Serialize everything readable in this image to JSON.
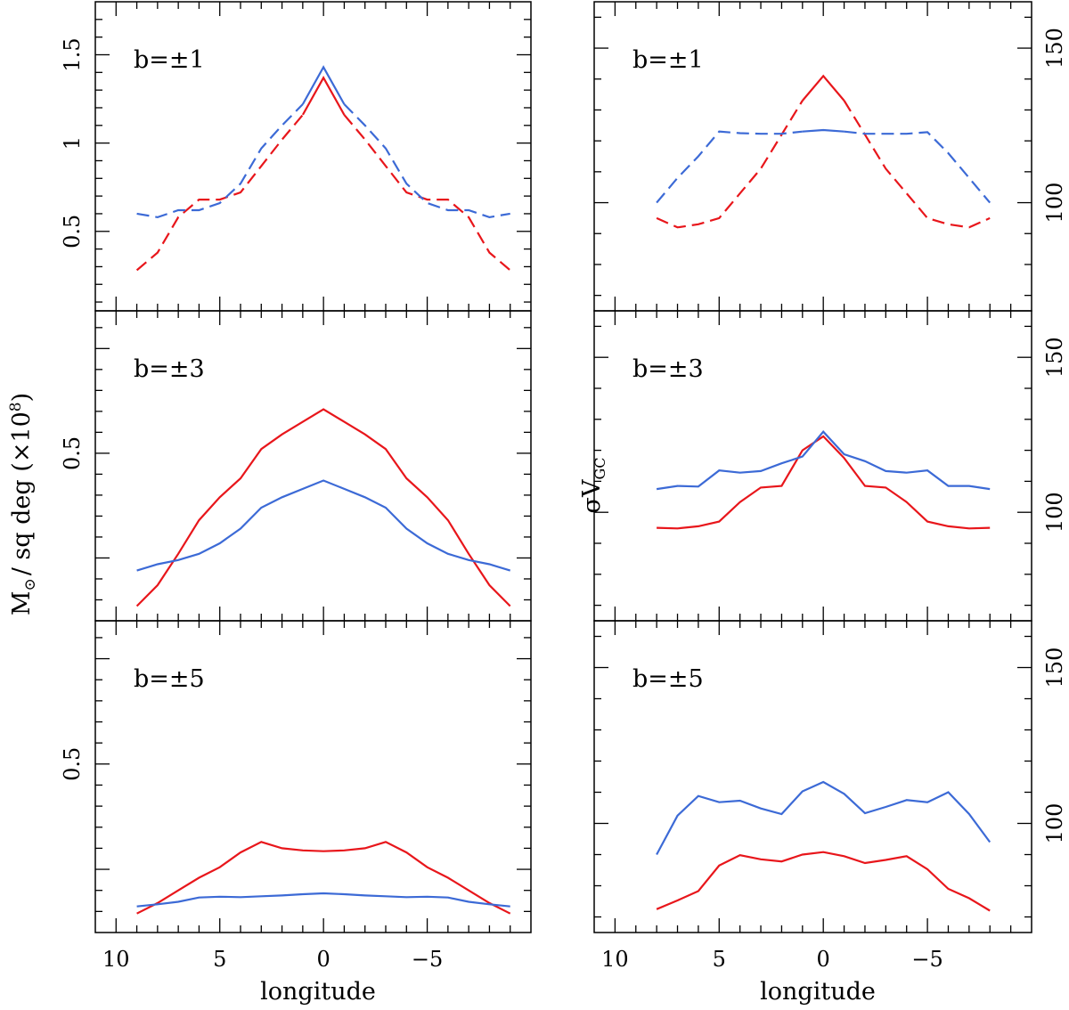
{
  "colors": {
    "red": "#e8161b",
    "blue": "#3c6ad6",
    "axes": "#000000"
  },
  "chart_data": {
    "type": "line",
    "shared_x": {
      "xlabel": "longitude",
      "xlim": [
        11,
        -10
      ],
      "major_ticks": [
        10,
        5,
        0,
        -5
      ],
      "tick_labels": [
        "10",
        "5",
        "0",
        "−5"
      ]
    },
    "left_column": {
      "ylabel_parts": [
        "M",
        "⊙",
        "/ sq deg (×10",
        "8",
        ")"
      ],
      "panels": [
        {
          "label": "b=±1",
          "ylim": [
            0.05,
            1.8
          ],
          "yticks": [
            0.5,
            1,
            1.5
          ],
          "ytick_labels": [
            "0.5",
            "1",
            "1.5"
          ],
          "series": [
            {
              "name": "red",
              "color": "red",
              "style": "mixed",
              "x": [
                9,
                8,
                7,
                6,
                5,
                4,
                3,
                2,
                1,
                0,
                -1,
                -2,
                -3,
                -4,
                -5,
                -6,
                -7,
                -8,
                -9
              ],
              "y": [
                0.28,
                0.38,
                0.58,
                0.68,
                0.68,
                0.72,
                0.87,
                1.02,
                1.16,
                1.37,
                1.16,
                1.02,
                0.87,
                0.72,
                0.68,
                0.68,
                0.58,
                0.38,
                0.28
              ]
            },
            {
              "name": "blue",
              "color": "blue",
              "style": "mixed",
              "x": [
                9,
                8,
                7,
                6,
                5,
                4,
                3,
                2,
                1,
                0,
                -1,
                -2,
                -3,
                -4,
                -5,
                -6,
                -7,
                -8,
                -9
              ],
              "y": [
                0.6,
                0.58,
                0.62,
                0.62,
                0.66,
                0.77,
                0.97,
                1.1,
                1.22,
                1.43,
                1.22,
                1.1,
                0.97,
                0.77,
                0.66,
                0.62,
                0.62,
                0.58,
                0.6
              ]
            }
          ]
        },
        {
          "label": "b=±3",
          "ylim": [
            0.1,
            0.84
          ],
          "yticks": [
            0.5
          ],
          "ytick_labels": [
            "0.5"
          ],
          "series": [
            {
              "name": "red",
              "color": "red",
              "style": "solid",
              "x": [
                9,
                8,
                7,
                6,
                5,
                4,
                3,
                2,
                1,
                0,
                -1,
                -2,
                -3,
                -4,
                -5,
                -6,
                -7,
                -8,
                -9
              ],
              "y": [
                0.135,
                0.185,
                0.26,
                0.34,
                0.395,
                0.44,
                0.51,
                0.545,
                0.575,
                0.605,
                0.575,
                0.545,
                0.51,
                0.44,
                0.395,
                0.34,
                0.26,
                0.185,
                0.135
              ]
            },
            {
              "name": "blue",
              "color": "blue",
              "style": "solid",
              "x": [
                9,
                8,
                7,
                6,
                5,
                4,
                3,
                2,
                1,
                0,
                -1,
                -2,
                -3,
                -4,
                -5,
                -6,
                -7,
                -8,
                -9
              ],
              "y": [
                0.22,
                0.235,
                0.245,
                0.26,
                0.285,
                0.32,
                0.37,
                0.395,
                0.415,
                0.435,
                0.415,
                0.395,
                0.37,
                0.32,
                0.285,
                0.26,
                0.245,
                0.235,
                0.22
              ]
            }
          ]
        },
        {
          "label": "b=±5",
          "ylim": [
            0.1,
            0.84
          ],
          "yticks": [
            0.5
          ],
          "ytick_labels": [
            "0.5"
          ],
          "series": [
            {
              "name": "red",
              "color": "red",
              "style": "solid",
              "x": [
                9,
                8,
                7,
                6,
                5,
                4,
                3,
                2,
                1,
                0,
                -1,
                -2,
                -3,
                -4,
                -5,
                -6,
                -7,
                -8,
                -9
              ],
              "y": [
                0.145,
                0.17,
                0.2,
                0.23,
                0.255,
                0.29,
                0.315,
                0.3,
                0.295,
                0.293,
                0.295,
                0.3,
                0.315,
                0.29,
                0.255,
                0.23,
                0.2,
                0.17,
                0.145
              ]
            },
            {
              "name": "blue",
              "color": "blue",
              "style": "solid",
              "x": [
                9,
                8,
                7,
                6,
                5,
                4,
                3,
                2,
                1,
                0,
                -1,
                -2,
                -3,
                -4,
                -5,
                -6,
                -7,
                -8,
                -9
              ],
              "y": [
                0.162,
                0.167,
                0.173,
                0.183,
                0.185,
                0.184,
                0.186,
                0.188,
                0.191,
                0.193,
                0.191,
                0.188,
                0.186,
                0.184,
                0.185,
                0.183,
                0.173,
                0.167,
                0.162
              ]
            }
          ]
        }
      ]
    },
    "right_column": {
      "ylabel_main": "σV",
      "ylabel_sub": "GC",
      "panels": [
        {
          "label": "b=±1",
          "ylim": [
            65,
            165
          ],
          "yticks": [
            100,
            150
          ],
          "ytick_labels": [
            "100",
            "150"
          ],
          "series": [
            {
              "name": "red",
              "color": "red",
              "style": "mixed",
              "x": [
                8,
                7,
                6,
                5,
                4,
                3,
                2,
                1,
                0,
                -1,
                -2,
                -3,
                -4,
                -5,
                -6,
                -7,
                -8
              ],
              "y": [
                95,
                92,
                93,
                95,
                103,
                111,
                122,
                133,
                141,
                133,
                122,
                111,
                103,
                95,
                93,
                92,
                95
              ]
            },
            {
              "name": "blue",
              "color": "blue",
              "style": "mixed",
              "x": [
                8,
                7,
                6,
                5,
                4,
                3,
                2,
                1,
                0,
                -1,
                -2,
                -3,
                -4,
                -5,
                -6,
                -7,
                -8
              ],
              "y": [
                100,
                108,
                115,
                123,
                122.5,
                122.3,
                122.3,
                123,
                123.5,
                123,
                122.3,
                122.3,
                122.3,
                122.8,
                116,
                108,
                100
              ]
            }
          ]
        },
        {
          "label": "b=±3",
          "ylim": [
            65,
            165
          ],
          "yticks": [
            100,
            150
          ],
          "ytick_labels": [
            "100",
            "150"
          ],
          "series": [
            {
              "name": "red",
              "color": "red",
              "style": "solid",
              "x": [
                8,
                7,
                6,
                5,
                4,
                3,
                2,
                1,
                0,
                -1,
                -2,
                -3,
                -4,
                -5,
                -6,
                -7,
                -8
              ],
              "y": [
                95,
                94.8,
                95.5,
                97,
                103.3,
                108,
                108.5,
                120,
                124.5,
                117.5,
                108.5,
                108,
                103.3,
                97,
                95.5,
                94.8,
                95
              ]
            },
            {
              "name": "blue",
              "color": "blue",
              "style": "solid",
              "x": [
                8,
                7,
                6,
                5,
                4,
                3,
                2,
                1,
                0,
                -1,
                -2,
                -3,
                -4,
                -5,
                -6,
                -7,
                -8
              ],
              "y": [
                107.5,
                108.5,
                108.3,
                113.5,
                112.8,
                113.3,
                115.8,
                118,
                126,
                118.7,
                116.5,
                113.3,
                112.8,
                113.5,
                108.5,
                108.5,
                107.5
              ]
            }
          ]
        },
        {
          "label": "b=±5",
          "ylim": [
            65,
            165
          ],
          "yticks": [
            100,
            150
          ],
          "ytick_labels": [
            "100",
            "150"
          ],
          "series": [
            {
              "name": "red",
              "color": "red",
              "style": "solid",
              "x": [
                8,
                7,
                6,
                5,
                4,
                3,
                2,
                1,
                0,
                -1,
                -2,
                -3,
                -4,
                -5,
                -6,
                -7,
                -8
              ],
              "y": [
                72.5,
                75.3,
                78.3,
                86.5,
                89.8,
                88.5,
                87.8,
                90,
                90.8,
                89.5,
                87.3,
                88.3,
                89.5,
                85.3,
                79,
                76,
                72
              ]
            },
            {
              "name": "blue",
              "color": "blue",
              "style": "solid",
              "x": [
                8,
                7,
                6,
                5,
                4,
                3,
                2,
                1,
                0,
                -1,
                -2,
                -3,
                -4,
                -5,
                -6,
                -7,
                -8
              ],
              "y": [
                90,
                102.5,
                108.8,
                106.8,
                107.3,
                104.8,
                103,
                110.3,
                113.3,
                109.5,
                103.3,
                105.3,
                107.5,
                106.8,
                110,
                103,
                94
              ]
            }
          ]
        }
      ]
    }
  }
}
